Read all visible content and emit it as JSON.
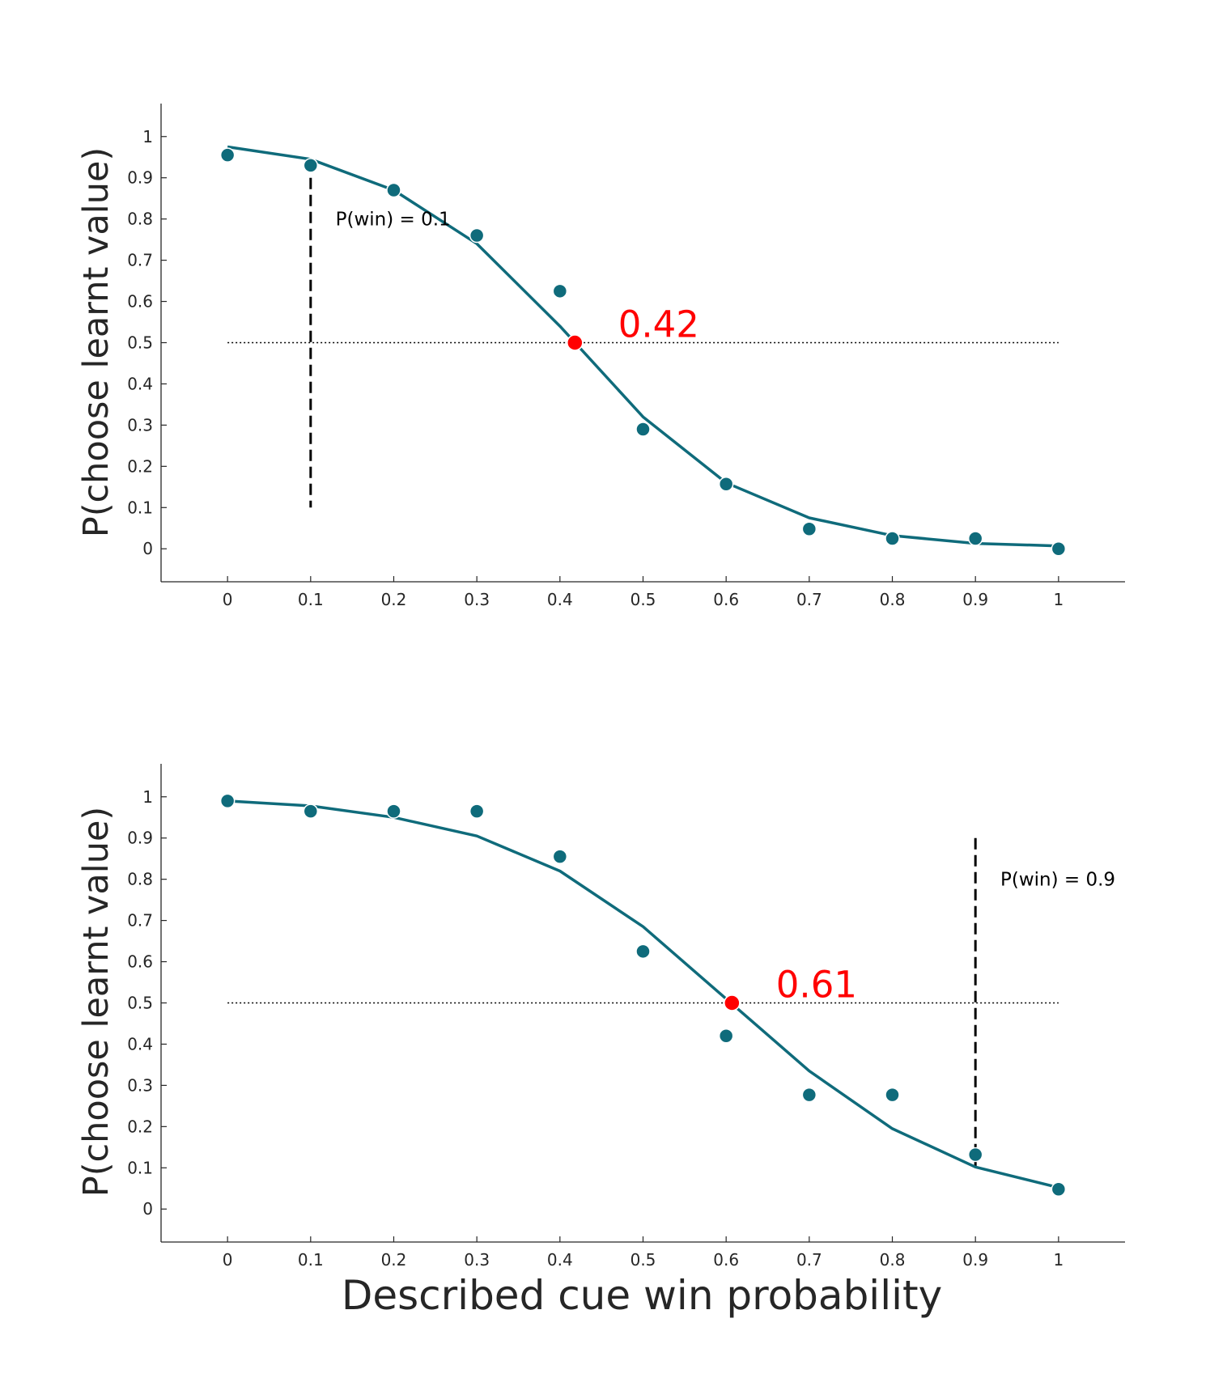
{
  "colors": {
    "series": "#0f6b7b",
    "highlight": "#ff0000",
    "axis": "#262626",
    "reference": "#000000"
  },
  "figure": {
    "xlabel": "Described cue win probability"
  },
  "chart_data": [
    {
      "type": "line",
      "title": "",
      "xlabel": "",
      "ylabel": "P(choose learnt value)",
      "xlim": [
        -0.08,
        1.08
      ],
      "ylim": [
        -0.08,
        1.08
      ],
      "x_ticks": [
        "0",
        "0.1",
        "0.2",
        "0.3",
        "0.4",
        "0.5",
        "0.6",
        "0.7",
        "0.8",
        "0.9",
        "1"
      ],
      "y_ticks": [
        "0",
        "0.1",
        "0.2",
        "0.3",
        "0.4",
        "0.5",
        "0.6",
        "0.7",
        "0.8",
        "0.9",
        "1"
      ],
      "grid": false,
      "series": [
        {
          "kind": "scatter",
          "x": [
            0,
            0.1,
            0.2,
            0.3,
            0.4,
            0.5,
            0.6,
            0.7,
            0.8,
            0.9,
            1
          ],
          "y": [
            0.955,
            0.93,
            0.87,
            0.76,
            0.625,
            0.29,
            0.157,
            0.048,
            0.025,
            0.025,
            0.0
          ]
        },
        {
          "kind": "line",
          "x": [
            0,
            0.1,
            0.2,
            0.3,
            0.4,
            0.5,
            0.6,
            0.7,
            0.8,
            0.9,
            1
          ],
          "y": [
            0.975,
            0.945,
            0.87,
            0.74,
            0.54,
            0.32,
            0.16,
            0.075,
            0.032,
            0.013,
            0.007
          ]
        }
      ],
      "reference_line_y": 0.5,
      "reference_line_x": [
        0,
        1
      ],
      "marker_line": {
        "x": 0.1,
        "y_from": 0.1,
        "y_to": 0.9
      },
      "marker_label": {
        "text": "P(win) = 0.1",
        "x": 0.13,
        "y": 0.8
      },
      "pse": {
        "x": 0.418,
        "y": 0.5,
        "label": "0.42",
        "label_x": 0.47,
        "label_y": 0.5
      }
    },
    {
      "type": "line",
      "title": "",
      "xlabel": "Described cue win probability",
      "ylabel": "P(choose learnt value)",
      "xlim": [
        -0.08,
        1.08
      ],
      "ylim": [
        -0.08,
        1.08
      ],
      "x_ticks": [
        "0",
        "0.1",
        "0.2",
        "0.3",
        "0.4",
        "0.5",
        "0.6",
        "0.7",
        "0.8",
        "0.9",
        "1"
      ],
      "y_ticks": [
        "0",
        "0.1",
        "0.2",
        "0.3",
        "0.4",
        "0.5",
        "0.6",
        "0.7",
        "0.8",
        "0.9",
        "1"
      ],
      "grid": false,
      "series": [
        {
          "kind": "scatter",
          "x": [
            0,
            0.1,
            0.2,
            0.3,
            0.4,
            0.5,
            0.6,
            0.7,
            0.8,
            0.9,
            1
          ],
          "y": [
            0.99,
            0.965,
            0.965,
            0.965,
            0.855,
            0.625,
            0.42,
            0.277,
            0.277,
            0.132,
            0.048
          ]
        },
        {
          "kind": "line",
          "x": [
            0,
            0.1,
            0.2,
            0.3,
            0.4,
            0.5,
            0.6,
            0.7,
            0.8,
            0.9,
            1
          ],
          "y": [
            0.99,
            0.978,
            0.95,
            0.905,
            0.82,
            0.685,
            0.51,
            0.335,
            0.195,
            0.102,
            0.052
          ]
        }
      ],
      "reference_line_y": 0.5,
      "reference_line_x": [
        0,
        1
      ],
      "marker_line": {
        "x": 0.9,
        "y_from": 0.1,
        "y_to": 0.9
      },
      "marker_label": {
        "text": "P(win) = 0.9",
        "x": 0.93,
        "y": 0.8
      },
      "pse": {
        "x": 0.607,
        "y": 0.5,
        "label": "0.61",
        "label_x": 0.66,
        "label_y": 0.5
      }
    }
  ]
}
